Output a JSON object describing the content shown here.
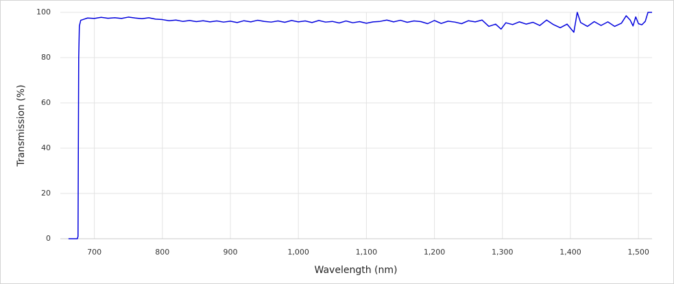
{
  "chart_data": {
    "type": "line",
    "x_label": "Wavelength (nm)",
    "y_label": "Transmission (%)",
    "x": [
      662,
      670,
      675,
      676,
      677,
      678,
      680,
      685,
      690,
      700,
      710,
      720,
      730,
      740,
      750,
      760,
      770,
      780,
      790,
      800,
      810,
      820,
      830,
      840,
      850,
      860,
      870,
      880,
      890,
      900,
      910,
      920,
      930,
      940,
      950,
      960,
      970,
      980,
      990,
      1000,
      1010,
      1020,
      1030,
      1040,
      1050,
      1060,
      1070,
      1080,
      1090,
      1100,
      1110,
      1120,
      1130,
      1140,
      1150,
      1160,
      1170,
      1180,
      1190,
      1200,
      1210,
      1220,
      1230,
      1240,
      1250,
      1260,
      1270,
      1280,
      1290,
      1298,
      1305,
      1315,
      1325,
      1335,
      1345,
      1355,
      1365,
      1375,
      1385,
      1395,
      1405,
      1410,
      1415,
      1425,
      1435,
      1445,
      1455,
      1465,
      1475,
      1482,
      1488,
      1492,
      1496,
      1500,
      1505,
      1510,
      1514,
      1520
    ],
    "values": [
      0,
      0,
      0,
      1,
      80,
      94,
      96.5,
      97,
      97.5,
      97.3,
      97.8,
      97.4,
      97.6,
      97.3,
      97.9,
      97.5,
      97.2,
      97.6,
      97.0,
      96.8,
      96.3,
      96.6,
      96.0,
      96.4,
      95.9,
      96.3,
      95.8,
      96.2,
      95.7,
      96.1,
      95.5,
      96.3,
      95.8,
      96.5,
      96.0,
      95.7,
      96.2,
      95.6,
      96.4,
      95.8,
      96.2,
      95.5,
      96.4,
      95.7,
      96.0,
      95.3,
      96.2,
      95.4,
      95.9,
      95.2,
      95.8,
      96.0,
      96.6,
      95.8,
      96.5,
      95.6,
      96.2,
      95.9,
      95.0,
      96.4,
      95.1,
      96.1,
      95.7,
      95.0,
      96.3,
      95.8,
      96.6,
      93.8,
      94.8,
      92.6,
      95.4,
      94.6,
      95.8,
      94.8,
      95.6,
      94.2,
      96.6,
      94.6,
      93.2,
      94.8,
      91.2,
      100,
      95.5,
      93.8,
      95.9,
      94.2,
      95.8,
      93.8,
      95.2,
      98.5,
      96.5,
      94.0,
      98.0,
      95.0,
      94.5,
      96.0,
      100,
      100
    ],
    "color": "#0000dd",
    "xlim": [
      650,
      1520
    ],
    "xticks": [
      700,
      800,
      900,
      {
        "value": 1000,
        "label": "1,000"
      },
      {
        "value": 1100,
        "label": "1,100"
      },
      {
        "value": 1200,
        "label": "1,200"
      },
      {
        "value": 1300,
        "label": "1,300"
      },
      {
        "value": 1400,
        "label": "1,400"
      },
      {
        "value": 1500,
        "label": "1,500"
      }
    ],
    "ylim": [
      0,
      100
    ],
    "yticks": [
      0,
      20,
      40,
      60,
      80,
      100
    ],
    "grid": true
  }
}
